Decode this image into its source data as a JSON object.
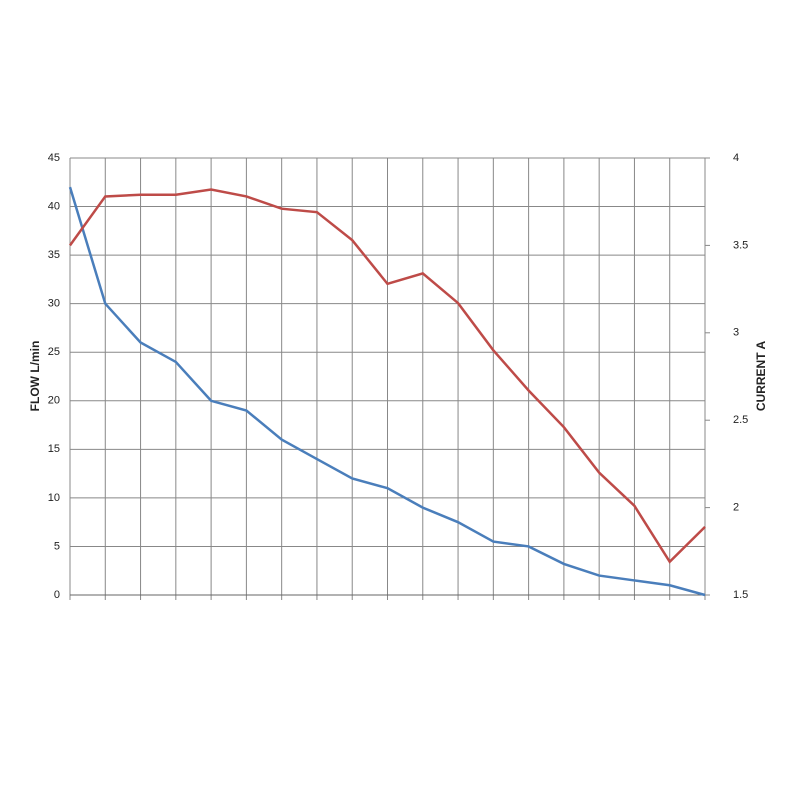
{
  "chart_data": {
    "type": "line",
    "categories": [
      null,
      null,
      null,
      null,
      null,
      null,
      null,
      null,
      null,
      null,
      null,
      null,
      null,
      null,
      null,
      null,
      null,
      null,
      null
    ],
    "y_label": "FLOW L/min",
    "y2_label": "CURRENT A",
    "ylim": [
      0,
      45
    ],
    "yticks": [
      0,
      5,
      10,
      15,
      20,
      25,
      30,
      35,
      40,
      45
    ],
    "y2lim": [
      1.5,
      4
    ],
    "y2ticks": [
      1.5,
      2,
      2.5,
      3,
      3.5,
      4
    ],
    "grid": true,
    "series": [
      {
        "color": "#4a7ebb",
        "values": [
          42,
          30,
          26,
          24,
          20,
          19,
          16,
          14,
          12,
          11,
          9,
          7.5,
          5.5,
          5,
          3.2,
          2,
          1.5,
          1,
          0
        ]
      },
      {
        "color": "#be4b48",
        "axis": "y2",
        "values": [
          3.5,
          3.78,
          3.79,
          3.79,
          3.82,
          3.78,
          3.71,
          3.69,
          3.53,
          3.28,
          3.34,
          3.17,
          2.9,
          2.67,
          2.46,
          2.2,
          2.01,
          1.69,
          1.89
        ]
      }
    ]
  }
}
